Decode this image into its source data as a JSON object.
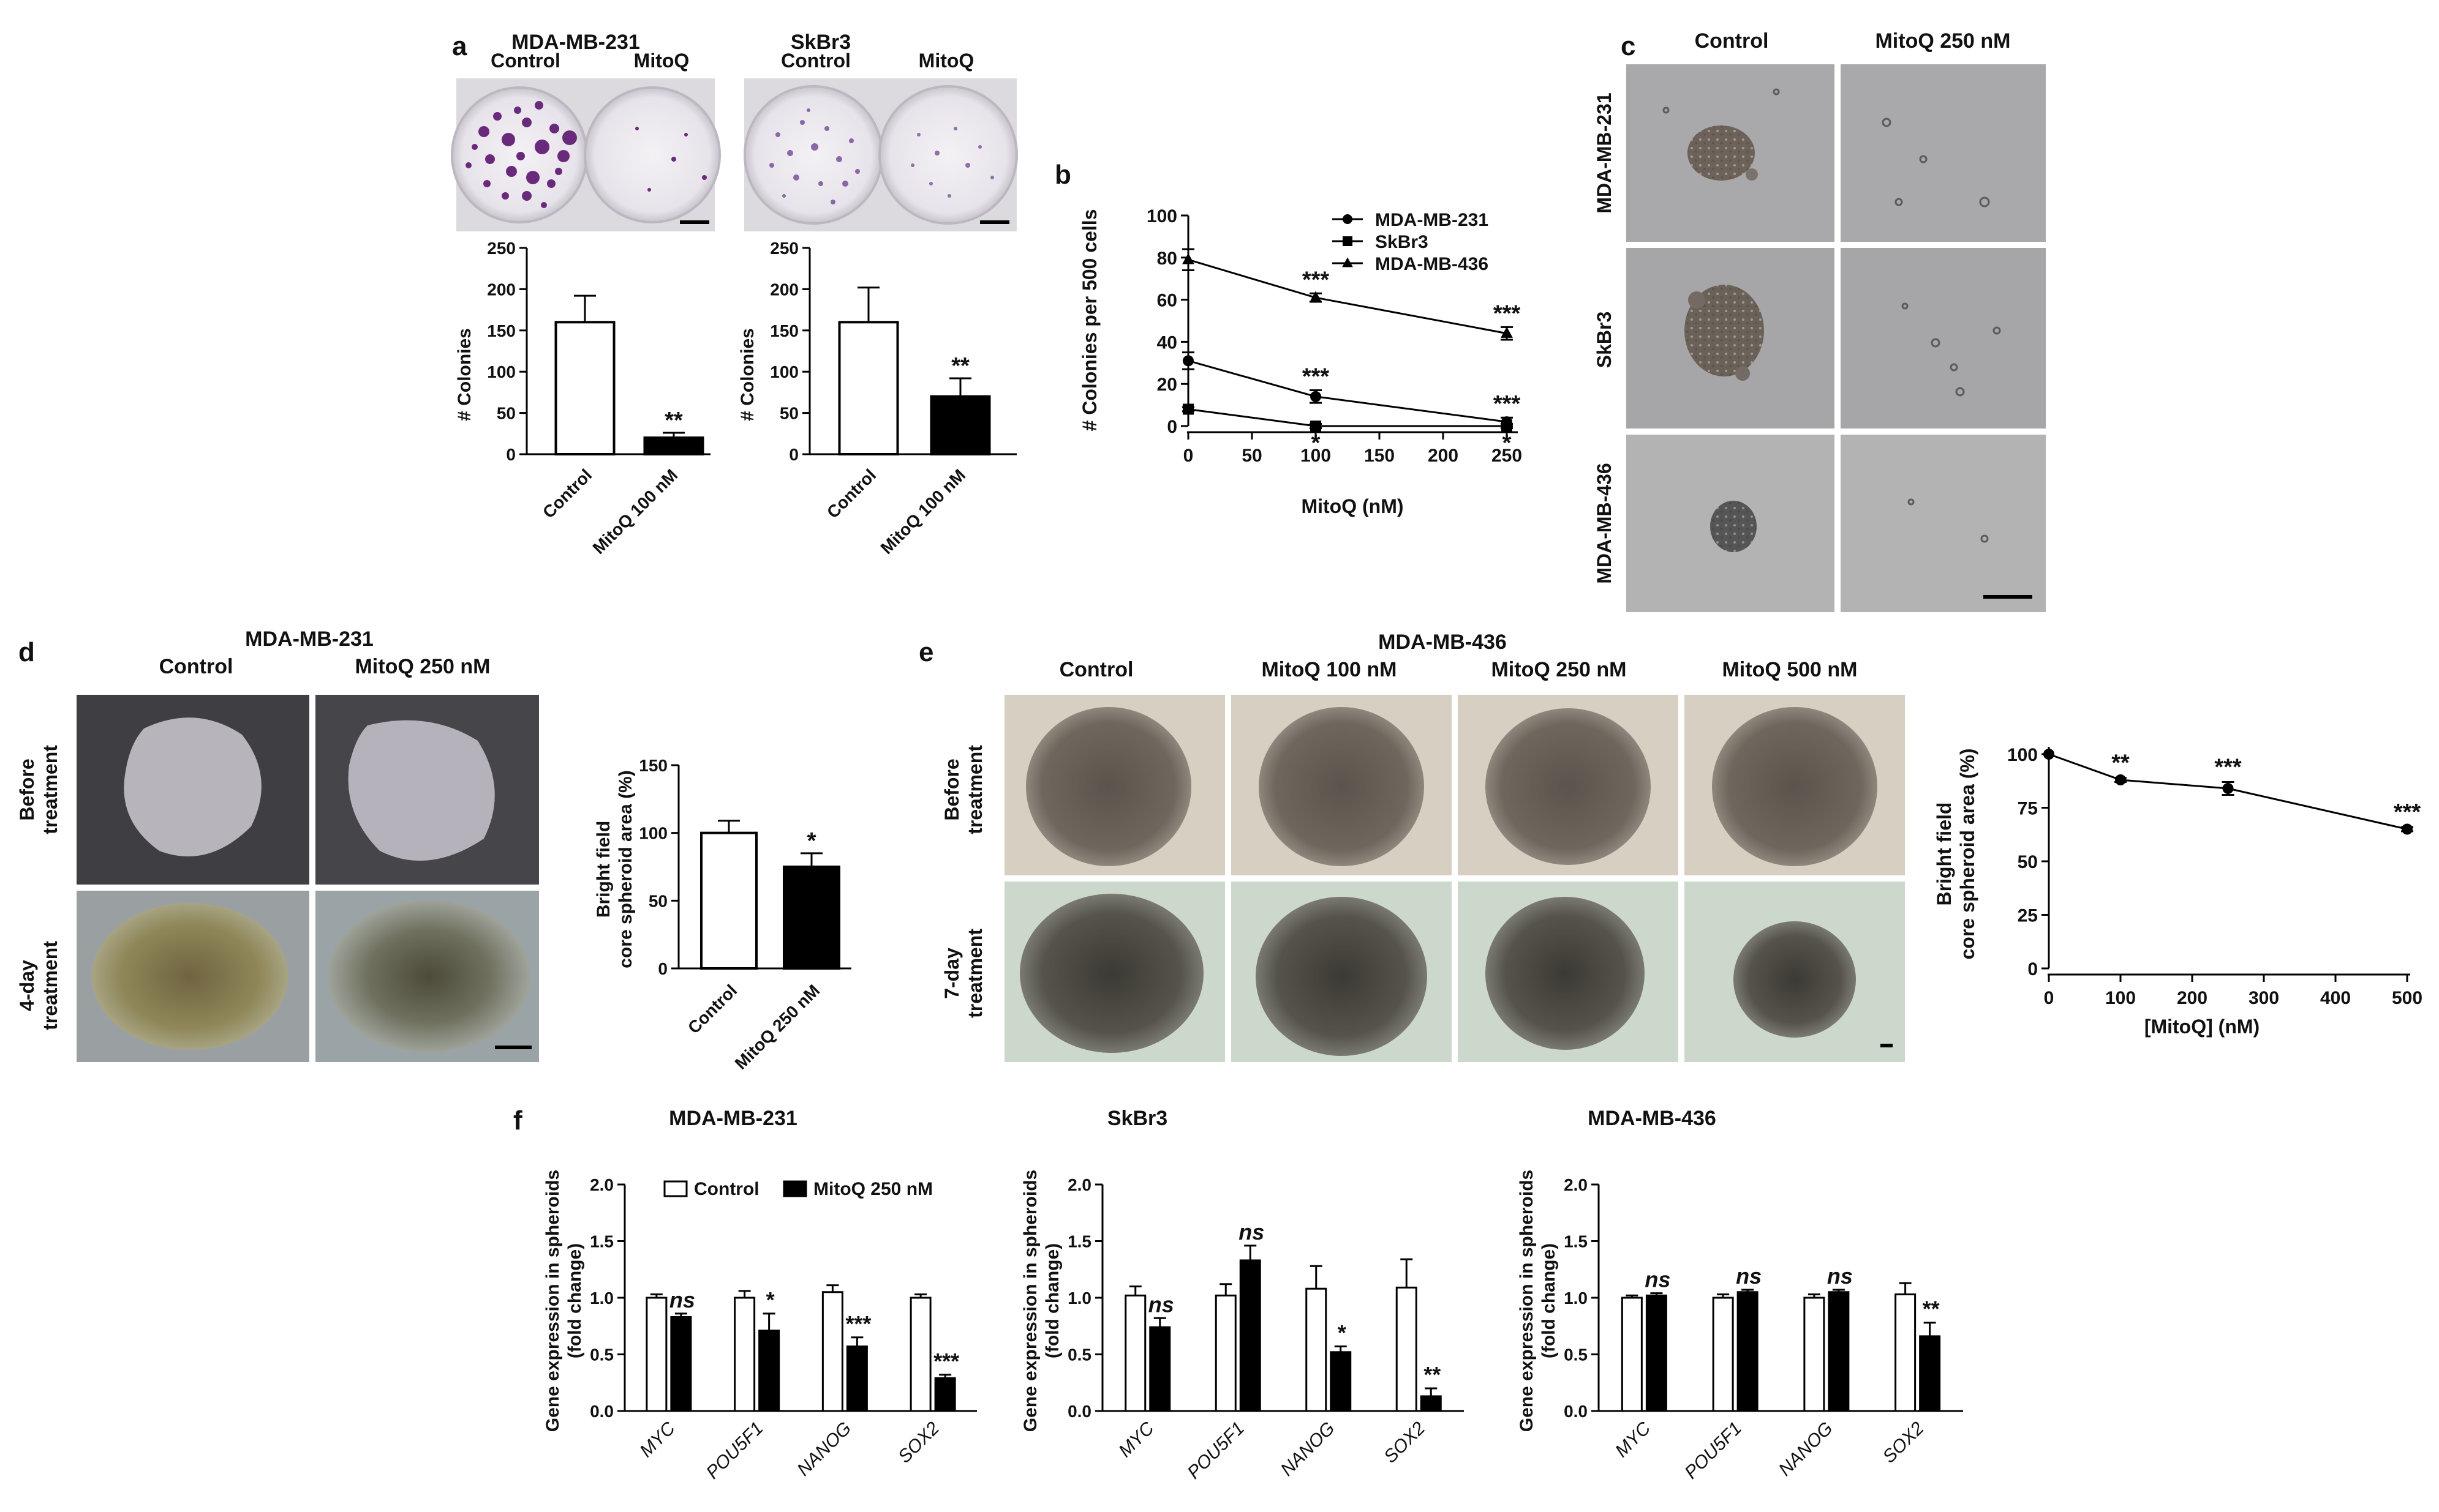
{
  "panel_letters": [
    "a",
    "b",
    "c",
    "d",
    "e",
    "f"
  ],
  "panel_a": {
    "images": [
      {
        "cell_line": "MDA-MB-231",
        "labels": [
          "Control",
          "MitoQ"
        ]
      },
      {
        "cell_line": "SkBr3",
        "labels": [
          "Control",
          "MitoQ"
        ]
      }
    ],
    "charts": [
      {
        "type": "bar",
        "cell_line": "MDA-MB-231",
        "ylabel": "# Colonies",
        "yticks": [
          "0",
          "50",
          "100",
          "150",
          "200",
          "250"
        ],
        "ylim": [
          0,
          250
        ],
        "categories": [
          "Control",
          "MitoQ 100 nM"
        ],
        "values": [
          160,
          20
        ],
        "errors": [
          32,
          6
        ],
        "fills": [
          "#ffffff",
          "#000000"
        ],
        "sig": [
          "",
          "**"
        ]
      },
      {
        "type": "bar",
        "cell_line": "SkBr3",
        "ylabel": "# Colonies",
        "yticks": [
          "0",
          "50",
          "100",
          "150",
          "200",
          "250"
        ],
        "ylim": [
          0,
          250
        ],
        "categories": [
          "Control",
          "MitoQ 100 nM"
        ],
        "values": [
          160,
          70
        ],
        "errors": [
          42,
          22
        ],
        "fills": [
          "#ffffff",
          "#000000"
        ],
        "sig": [
          "",
          "**"
        ]
      }
    ]
  },
  "panel_b": {
    "type": "line",
    "ylabel": "# Colonies per 500 cells",
    "xlabel": "MitoQ (nM)",
    "xticks": [
      "0",
      "50",
      "100",
      "150",
      "200",
      "250"
    ],
    "yticks": [
      "0",
      "20",
      "40",
      "60",
      "80",
      "100"
    ],
    "xlim": [
      0,
      250
    ],
    "ylim": [
      0,
      100
    ],
    "x": [
      0,
      100,
      250
    ],
    "series": [
      {
        "name": "MDA-MB-231",
        "marker": "circle",
        "values": [
          31,
          14,
          2
        ],
        "errors": [
          4,
          3,
          2
        ],
        "sig": [
          "",
          "***",
          "***"
        ]
      },
      {
        "name": "SkBr3",
        "marker": "square",
        "values": [
          8,
          0,
          0
        ],
        "errors": [
          1,
          1,
          1
        ],
        "sig": [
          "",
          "*",
          "*"
        ]
      },
      {
        "name": "MDA-MB-436",
        "marker": "triangle",
        "values": [
          79,
          61,
          44
        ],
        "errors": [
          5,
          2,
          3
        ],
        "sig": [
          "",
          "***",
          "***"
        ]
      }
    ]
  },
  "panel_c": {
    "columns": [
      "Control",
      "MitoQ 250 nM"
    ],
    "rows": [
      "MDA-MB-231",
      "SkBr3",
      "MDA-MB-436"
    ]
  },
  "panel_d": {
    "title": "MDA-MB-231",
    "columns": [
      "Control",
      "MitoQ 250 nM"
    ],
    "rows": [
      "Before\ntreatment",
      "4-day\ntreatment"
    ],
    "chart": {
      "type": "bar",
      "ylabel": "Bright field\ncore spheroid area (%)",
      "yticks": [
        "0",
        "50",
        "100",
        "150"
      ],
      "ylim": [
        0,
        150
      ],
      "categories": [
        "Control",
        "MitoQ 250 nM"
      ],
      "values": [
        100,
        75
      ],
      "errors": [
        9,
        10
      ],
      "fills": [
        "#ffffff",
        "#000000"
      ],
      "sig": [
        "",
        "*"
      ]
    }
  },
  "panel_e": {
    "title": "MDA-MB-436",
    "columns": [
      "Control",
      "MitoQ 100 nM",
      "MitoQ 250 nM",
      "MitoQ 500 nM"
    ],
    "rows": [
      "Before\ntreatment",
      "7-day\ntreatment"
    ],
    "chart": {
      "type": "line",
      "ylabel": "Bright field\ncore spheroid area (%)",
      "xlabel": "[MitoQ] (nM)",
      "xticks": [
        "0",
        "100",
        "200",
        "300",
        "400",
        "500"
      ],
      "yticks": [
        "0",
        "25",
        "50",
        "75",
        "100"
      ],
      "xlim": [
        0,
        500
      ],
      "ylim": [
        0,
        100
      ],
      "x": [
        0,
        100,
        250,
        500
      ],
      "values": [
        100,
        88,
        84,
        65
      ],
      "errors": [
        0,
        1,
        3,
        1
      ],
      "sig": [
        "",
        "**",
        "***",
        "***"
      ]
    }
  },
  "panel_f": {
    "legend": [
      {
        "name": "Control",
        "fill": "#ffffff"
      },
      {
        "name": "MitoQ 250 nM",
        "fill": "#000000"
      }
    ],
    "ylabel": "Gene expression in spheroids\n(fold change)",
    "yticks": [
      "0.0",
      "0.5",
      "1.0",
      "1.5",
      "2.0"
    ],
    "ylim": [
      0,
      2
    ],
    "genes": [
      "MYC",
      "POU5F1",
      "NANOG",
      "SOX2"
    ],
    "charts": [
      {
        "title": "MDA-MB-231",
        "series": [
          {
            "name": "Control",
            "values": [
              1.0,
              1.0,
              1.05,
              1.0
            ],
            "errors": [
              0.03,
              0.06,
              0.06,
              0.03
            ]
          },
          {
            "name": "MitoQ 250 nM",
            "values": [
              0.83,
              0.71,
              0.57,
              0.29
            ],
            "errors": [
              0.03,
              0.15,
              0.08,
              0.03
            ]
          }
        ],
        "sig": [
          "ns",
          "*",
          "***",
          "***"
        ]
      },
      {
        "title": "SkBr3",
        "series": [
          {
            "name": "Control",
            "values": [
              1.02,
              1.02,
              1.08,
              1.09
            ],
            "errors": [
              0.08,
              0.1,
              0.2,
              0.25
            ]
          },
          {
            "name": "MitoQ 250 nM",
            "values": [
              0.74,
              1.33,
              0.52,
              0.13
            ],
            "errors": [
              0.08,
              0.13,
              0.05,
              0.07
            ]
          }
        ],
        "sig": [
          "ns",
          "ns",
          "*",
          "**"
        ]
      },
      {
        "title": "MDA-MB-436",
        "series": [
          {
            "name": "Control",
            "values": [
              1.0,
              1.0,
              1.0,
              1.03
            ],
            "errors": [
              0.02,
              0.03,
              0.03,
              0.1
            ]
          },
          {
            "name": "MitoQ 250 nM",
            "values": [
              1.02,
              1.05,
              1.05,
              0.66
            ],
            "errors": [
              0.02,
              0.02,
              0.02,
              0.12
            ]
          }
        ],
        "sig": [
          "ns",
          "ns",
          "ns",
          "**"
        ]
      }
    ]
  }
}
